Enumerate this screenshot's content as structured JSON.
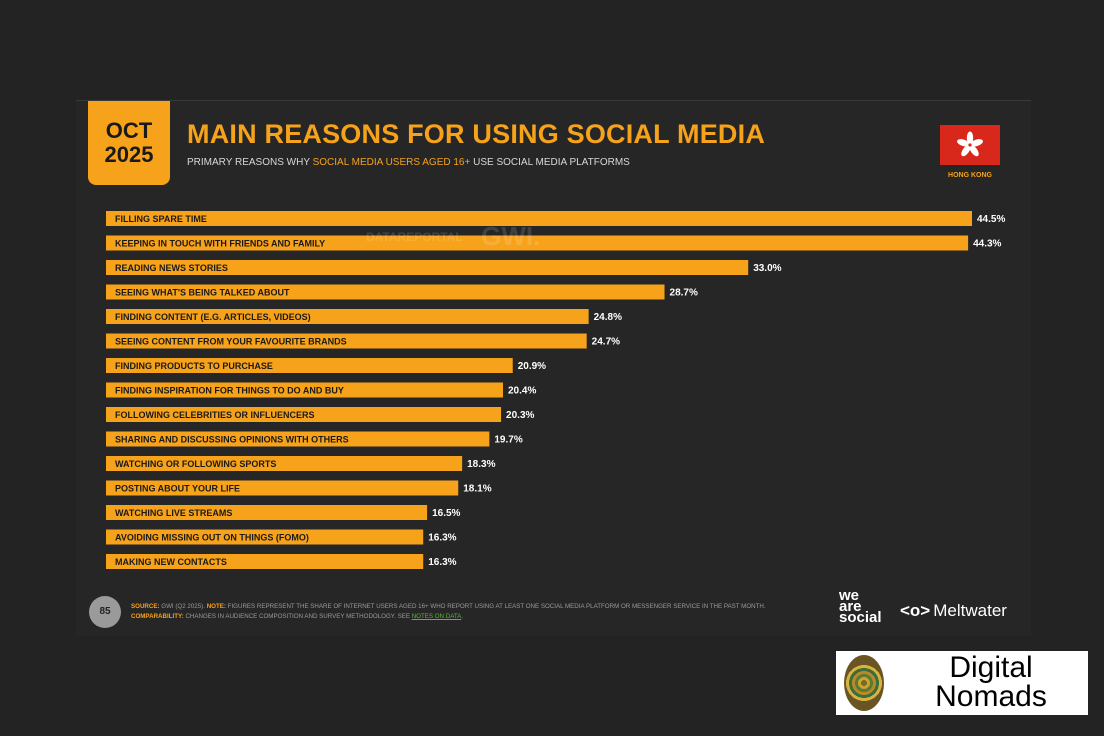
{
  "header": {
    "badge_month": "OCT",
    "badge_year": "2025",
    "title": "MAIN REASONS FOR USING SOCIAL MEDIA",
    "subtitle_prefix": "PRIMARY REASONS WHY",
    "subtitle_highlight": "SOCIAL MEDIA USERS AGED 16+",
    "subtitle_suffix": "USE SOCIAL MEDIA PLATFORMS",
    "country_label": "HONG KONG"
  },
  "watermark": {
    "datareportal": "DATAREPORTAL",
    "gwi": "GWI."
  },
  "footer": {
    "page_number": "85",
    "source_label": "SOURCE:",
    "source_text": "GWI (Q2 2025).",
    "note_label": "NOTE:",
    "note_text": "FIGURES REPRESENT THE SHARE OF INTERNET USERS AGED 16+ WHO REPORT USING AT LEAST ONE SOCIAL MEDIA PLATFORM OR MESSENGER SERVICE IN THE PAST MONTH.",
    "comparability_label": "COMPARABILITY:",
    "comparability_text": "CHANGES IN AUDIENCE COMPOSITION AND SURVEY METHODOLOGY. SEE",
    "notes_link": "NOTES ON DATA",
    "brand1_line1": "we",
    "brand1_line2": "are",
    "brand1_line3": "social",
    "brand2_icon": "<o>",
    "brand2": "Meltwater"
  },
  "logo": {
    "line1": "Digital",
    "line2": "Nomads"
  },
  "colors": {
    "bar": "#f7a21b",
    "background": "#262626",
    "label_text": "#1a1a1a",
    "value_text": "#ffffff"
  },
  "chart_data": {
    "type": "bar",
    "orientation": "horizontal",
    "categories": [
      "FILLING SPARE TIME",
      "KEEPING IN TOUCH WITH FRIENDS AND FAMILY",
      "READING NEWS STORIES",
      "SEEING WHAT'S BEING TALKED ABOUT",
      "FINDING CONTENT (E.G. ARTICLES, VIDEOS)",
      "SEEING CONTENT FROM YOUR FAVOURITE BRANDS",
      "FINDING PRODUCTS TO PURCHASE",
      "FINDING INSPIRATION FOR THINGS TO DO AND BUY",
      "FOLLOWING CELEBRITIES OR INFLUENCERS",
      "SHARING AND DISCUSSING OPINIONS WITH OTHERS",
      "WATCHING OR FOLLOWING SPORTS",
      "POSTING ABOUT YOUR LIFE",
      "WATCHING LIVE STREAMS",
      "AVOIDING MISSING OUT ON THINGS (FOMO)",
      "MAKING NEW CONTACTS"
    ],
    "values": [
      44.5,
      44.3,
      33.0,
      28.7,
      24.8,
      24.7,
      20.9,
      20.4,
      20.3,
      19.7,
      18.3,
      18.1,
      16.5,
      16.3,
      16.3
    ],
    "value_labels": [
      "44.5%",
      "44.3%",
      "33.0%",
      "28.7%",
      "24.8%",
      "24.7%",
      "20.9%",
      "20.4%",
      "20.3%",
      "19.7%",
      "18.3%",
      "18.1%",
      "16.5%",
      "16.3%",
      "16.3%"
    ],
    "unit": "%",
    "xlim": [
      0,
      44.5
    ],
    "grid": false,
    "legend": "none"
  }
}
